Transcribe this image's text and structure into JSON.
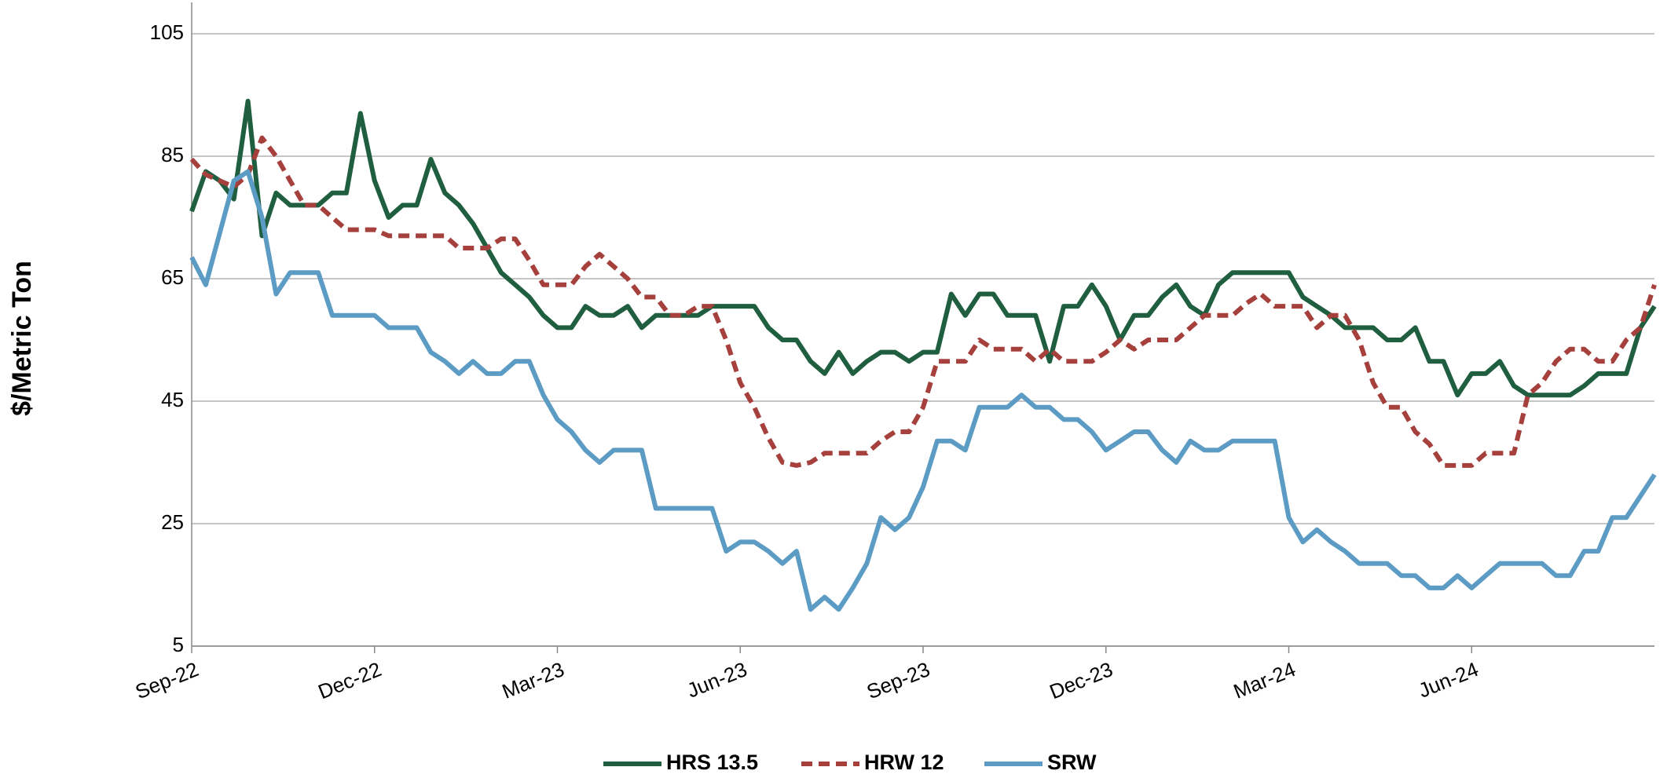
{
  "chart_data": {
    "type": "line",
    "y_label": "$/Metric Ton",
    "categories": [
      "Sep-22",
      null,
      null,
      null,
      null,
      null,
      null,
      null,
      null,
      null,
      null,
      null,
      null,
      "Dec-22",
      null,
      null,
      null,
      null,
      null,
      null,
      null,
      null,
      null,
      null,
      null,
      null,
      "Mar-23",
      null,
      null,
      null,
      null,
      null,
      null,
      null,
      null,
      null,
      null,
      null,
      null,
      "Jun-23",
      null,
      null,
      null,
      null,
      null,
      null,
      null,
      null,
      null,
      null,
      null,
      null,
      "Sep-23",
      null,
      null,
      null,
      null,
      null,
      null,
      null,
      null,
      null,
      null,
      null,
      null,
      "Dec-23",
      null,
      null,
      null,
      null,
      null,
      null,
      null,
      null,
      null,
      null,
      null,
      null,
      "Mar-24",
      null,
      null,
      null,
      null,
      null,
      null,
      null,
      null,
      null,
      null,
      null,
      null,
      "Jun-24",
      null,
      null,
      null,
      null,
      null,
      null,
      null,
      null,
      null,
      null,
      null,
      null,
      null
    ],
    "series": [
      {
        "name": "HRS 13.5",
        "color": "#1f5e3f",
        "dashed": false,
        "values": [
          76,
          82.5,
          81,
          78,
          94,
          72,
          79,
          77,
          77,
          77,
          79,
          79,
          92,
          81,
          75,
          77,
          77,
          84.5,
          79,
          77,
          74,
          70,
          66,
          64,
          62,
          59,
          57,
          57,
          60.5,
          59,
          59,
          60.5,
          57,
          59,
          59,
          59,
          59,
          60.5,
          60.5,
          60.5,
          60.5,
          57,
          55,
          55,
          51.5,
          49.5,
          53,
          49.5,
          51.5,
          53,
          53,
          51.5,
          53,
          53,
          62.5,
          59,
          62.5,
          62.5,
          59,
          59,
          59,
          51.5,
          60.5,
          60.5,
          64,
          60.5,
          55,
          59,
          59,
          62,
          64,
          60.5,
          59,
          64,
          66,
          66,
          66,
          66,
          66,
          62,
          60.5,
          59,
          57,
          57,
          57,
          55,
          55,
          57,
          51.5,
          51.5,
          46,
          49.5,
          49.5,
          51.5,
          47.5,
          46,
          46,
          46,
          46,
          47.5,
          49.5,
          49.5,
          49.5,
          57,
          60.5
        ]
      },
      {
        "name": "HRW 12",
        "color": "#a5403d",
        "dashed": true,
        "values": [
          84.5,
          82,
          81,
          80,
          82,
          88,
          85,
          81,
          77,
          77,
          75,
          73,
          73,
          73,
          72,
          72,
          72,
          72,
          72,
          70,
          70,
          70,
          71.5,
          71.5,
          68,
          64,
          64,
          64,
          67,
          69,
          67,
          65,
          62,
          62,
          59,
          59,
          60.5,
          60.5,
          55,
          48,
          44,
          39,
          35,
          34.5,
          35,
          36.5,
          36.5,
          36.5,
          36.5,
          38.5,
          40,
          40,
          44,
          51.5,
          51.5,
          51.5,
          55,
          53.5,
          53.5,
          53.5,
          51.5,
          53.5,
          51.5,
          51.5,
          51.5,
          53,
          55,
          53.5,
          55,
          55,
          55,
          57,
          59,
          59,
          59,
          61,
          62.5,
          60.5,
          60.5,
          60.5,
          57,
          59,
          59,
          55,
          48,
          44,
          44,
          40,
          38,
          34.5,
          34.5,
          34.5,
          36.5,
          36.5,
          36.5,
          46,
          48,
          51.5,
          53.5,
          53.5,
          51.5,
          51.5,
          55,
          57,
          64
        ]
      },
      {
        "name": "SRW",
        "color": "#5b9bc4",
        "dashed": false,
        "values": [
          68.5,
          64,
          72.5,
          81,
          82.5,
          75,
          62.5,
          66,
          66,
          66,
          59,
          59,
          59,
          59,
          57,
          57,
          57,
          53,
          51.5,
          49.5,
          51.5,
          49.5,
          49.5,
          51.5,
          51.5,
          46,
          42,
          40,
          37,
          35,
          37,
          37,
          37,
          27.5,
          27.5,
          27.5,
          27.5,
          27.5,
          20.5,
          22,
          22,
          20.5,
          18.5,
          20.5,
          11,
          13,
          11,
          14.5,
          18.5,
          26,
          24,
          26,
          31,
          38.5,
          38.5,
          37,
          44,
          44,
          44,
          46,
          44,
          44,
          42,
          42,
          40,
          37,
          38.5,
          40,
          40,
          37,
          35,
          38.5,
          37,
          37,
          38.5,
          38.5,
          38.5,
          38.5,
          26,
          22,
          24,
          22,
          20.5,
          18.5,
          18.5,
          18.5,
          16.5,
          16.5,
          14.5,
          14.5,
          16.5,
          14.5,
          16.5,
          18.5,
          18.5,
          18.5,
          18.5,
          16.5,
          16.5,
          20.5,
          20.5,
          26,
          26,
          29.5,
          33
        ]
      }
    ],
    "ylim": [
      5,
      105
    ],
    "yticks": [
      5,
      25,
      45,
      65,
      85,
      105
    ],
    "grid": true,
    "legend": "bottom"
  }
}
